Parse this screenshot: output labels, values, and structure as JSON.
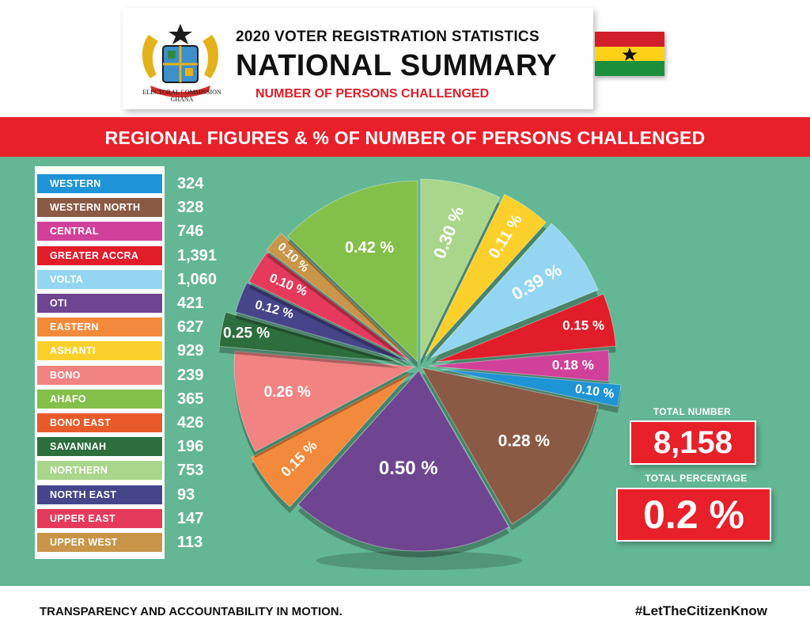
{
  "header": {
    "title_line1": "2020 VOTER REGISTRATION STATISTICS",
    "title_line2": "NATIONAL SUMMARY",
    "title_line3": "NUMBER OF PERSONS CHALLENGED",
    "emblem_caption_line1": "ELECTORAL COMMISSION",
    "emblem_caption_line2": "GHANA"
  },
  "banner": {
    "text": "REGIONAL FIGURES & % OF NUMBER OF PERSONS CHALLENGED"
  },
  "totals": {
    "number_label": "TOTAL NUMBER",
    "number_value": "8,158",
    "percentage_label": "TOTAL  PERCENTAGE",
    "percentage_value": "0.2 %"
  },
  "footer": {
    "tagline": "TRANSPARENCY AND ACCOUNTABILITY IN MOTION.",
    "hashtag": "#LetTheCitizenKnow"
  },
  "chart_data": {
    "type": "pie",
    "title": "REGIONAL FIGURES & % OF NUMBER OF PERSONS CHALLENGED",
    "regions": [
      {
        "name": "WESTERN",
        "count": "324",
        "percent": "0.10 %",
        "color": "#1f94d6"
      },
      {
        "name": "WESTERN NORTH",
        "count": "328",
        "percent": "0.28 %",
        "color": "#8a5a44"
      },
      {
        "name": "CENTRAL",
        "count": "746",
        "percent": "0.18 %",
        "color": "#d1419a"
      },
      {
        "name": "GREATER ACCRA",
        "count": "1,391",
        "percent": "0.15 %",
        "color": "#e11d2a"
      },
      {
        "name": "VOLTA",
        "count": "1,060",
        "percent": "0.39 %",
        "color": "#94d6f2"
      },
      {
        "name": "OTI",
        "count": "421",
        "percent": "0.50 %",
        "color": "#6f4591"
      },
      {
        "name": "EASTERN",
        "count": "627",
        "percent": "0.15 %",
        "color": "#f3893a"
      },
      {
        "name": "ASHANTI",
        "count": "929",
        "percent": "0.11 %",
        "color": "#fcd02b"
      },
      {
        "name": "BONO",
        "count": "239",
        "percent": "0.26 %",
        "color": "#f28383"
      },
      {
        "name": "AHAFO",
        "count": "365",
        "percent": "0.42 %",
        "color": "#84bf4a"
      },
      {
        "name": "BONO EAST",
        "count": "426",
        "percent": "",
        "color": "#e85a2a"
      },
      {
        "name": "SAVANNAH",
        "count": "196",
        "percent": "0.25 %",
        "color": "#2c6e3c"
      },
      {
        "name": "NORTHERN",
        "count": "753",
        "percent": "0.30 %",
        "color": "#a9d68a"
      },
      {
        "name": "NORTH EAST",
        "count": "93",
        "percent": "0.12 %",
        "color": "#47458a"
      },
      {
        "name": "UPPER EAST",
        "count": "147",
        "percent": "0.10 %",
        "color": "#e53a5c"
      },
      {
        "name": "UPPER WEST",
        "count": "113",
        "percent": "0.10 %",
        "color": "#c99548"
      }
    ],
    "slices": [
      {
        "region": "NORTHERN",
        "label": "0.30 %",
        "color": "#a9d68a"
      },
      {
        "region": "ASHANTI",
        "label": "0.11 %",
        "color": "#fcd02b"
      },
      {
        "region": "VOLTA",
        "label": "0.39 %",
        "color": "#94d6f2"
      },
      {
        "region": "GREATER ACCRA",
        "label": "0.15 %",
        "color": "#e11d2a"
      },
      {
        "region": "CENTRAL",
        "label": "0.18 %",
        "color": "#d1419a"
      },
      {
        "region": "WESTERN",
        "label": "0.10 %",
        "color": "#1f94d6"
      },
      {
        "region": "WESTERN NORTH",
        "label": "0.28 %",
        "color": "#8a5a44"
      },
      {
        "region": "OTI",
        "label": "0.50 %",
        "color": "#6f4591"
      },
      {
        "region": "EASTERN",
        "label": "0.15 %",
        "color": "#f3893a"
      },
      {
        "region": "BONO",
        "label": "0.26 %",
        "color": "#f28383"
      },
      {
        "region": "SAVANNAH",
        "label": "0.25 %",
        "color": "#2c6e3c"
      },
      {
        "region": "NORTH EAST",
        "label": "0.12 %",
        "color": "#47458a"
      },
      {
        "region": "UPPER EAST",
        "label": "0.10 %",
        "color": "#e53a5c"
      },
      {
        "region": "UPPER WEST",
        "label": "0.10 %",
        "color": "#c99548"
      },
      {
        "region": "AHAFO",
        "label": "0.42 %",
        "color": "#84bf4a"
      }
    ],
    "legend_position": "left"
  }
}
